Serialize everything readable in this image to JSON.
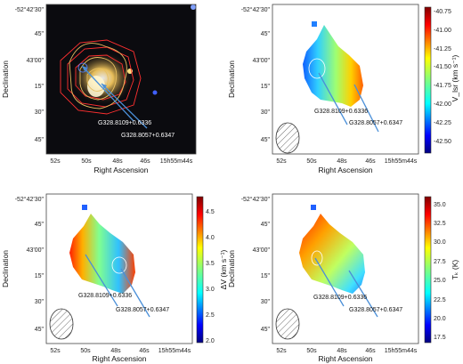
{
  "chart_data": [
    {
      "type": "heatmap",
      "panel": "a",
      "xlabel": "Right Ascension",
      "ylabel": "Declination",
      "xticks": [
        "52s",
        "50s",
        "48s",
        "46s",
        "15h55m44s"
      ],
      "yticks": [
        "-52°42'30\"",
        "45\"",
        "43'00\"",
        "15\"",
        "30\"",
        "45\""
      ],
      "annotations": [
        "G328.8109+0.6336",
        "G328.8057+0.6347"
      ],
      "colorbar": null
    },
    {
      "type": "heatmap",
      "panel": "b",
      "xlabel": "Right Ascension",
      "ylabel": "Declination",
      "xticks": [
        "52s",
        "50s",
        "48s",
        "46s",
        "15h55m44s"
      ],
      "yticks": [
        "-52°42'30\"",
        "45\"",
        "43'00\"",
        "15\"",
        "30\"",
        "45\""
      ],
      "annotations": [
        "G328.8109+0.6336",
        "G328.8057+0.6347"
      ],
      "colorbar": {
        "label": "V_lsr (km s⁻¹)",
        "ticks": [
          "-40.75",
          "-41.00",
          "-41.25",
          "-41.50",
          "-41.75",
          "-42.00",
          "-42.25",
          "-42.50"
        ],
        "range": [
          -42.6,
          -40.7
        ]
      }
    },
    {
      "type": "heatmap",
      "panel": "c",
      "xlabel": "Right Ascension",
      "ylabel": "Declination",
      "xticks": [
        "52s",
        "50s",
        "48s",
        "46s",
        "15h55m44s"
      ],
      "yticks": [
        "-52°42'30\"",
        "45\"",
        "43'00\"",
        "15\"",
        "30\"",
        "45\""
      ],
      "annotations": [
        "G328.8109+0.6336",
        "G328.8057+0.6347"
      ],
      "colorbar": {
        "label": "ΔV (km s⁻¹)",
        "ticks": [
          "4.5",
          "4.0",
          "3.5",
          "3.0",
          "2.5",
          "2.0"
        ],
        "range": [
          2.0,
          4.8
        ]
      }
    },
    {
      "type": "heatmap",
      "panel": "d",
      "xlabel": "Right Ascension",
      "ylabel": "Declination",
      "xticks": [
        "52s",
        "50s",
        "48s",
        "46s",
        "15h55m44s"
      ],
      "yticks": [
        "-52°42'30\"",
        "45\"",
        "43'00\"",
        "15\"",
        "30\"",
        "45\""
      ],
      "annotations": [
        "G328.8109+0.6336",
        "G328.8057+0.6347"
      ],
      "colorbar": {
        "label": "Tₖ (K)",
        "ticks": [
          "35.0",
          "32.5",
          "30.0",
          "27.5",
          "25.0",
          "22.5",
          "20.0",
          "17.5"
        ],
        "range": [
          17.0,
          36.0
        ]
      }
    }
  ]
}
